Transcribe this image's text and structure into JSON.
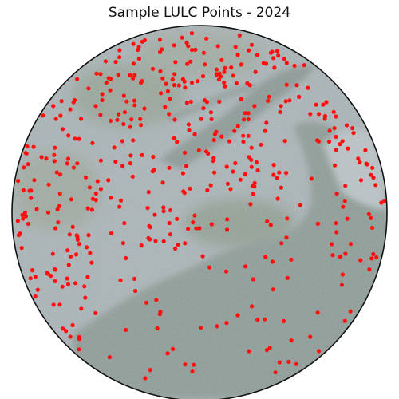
{
  "title": "Sample LULC Points - 2024",
  "colors": {
    "sample_point": "#ff1010",
    "boundary": "#111111",
    "urban": "#aab3b6",
    "vegetation": "#9fab9f",
    "water": "#8f9c97",
    "background": "#ffffff"
  },
  "map": {
    "basemap": "satellite-imagery",
    "boundary_shape": "circle",
    "marker": "filled-circle"
  }
}
